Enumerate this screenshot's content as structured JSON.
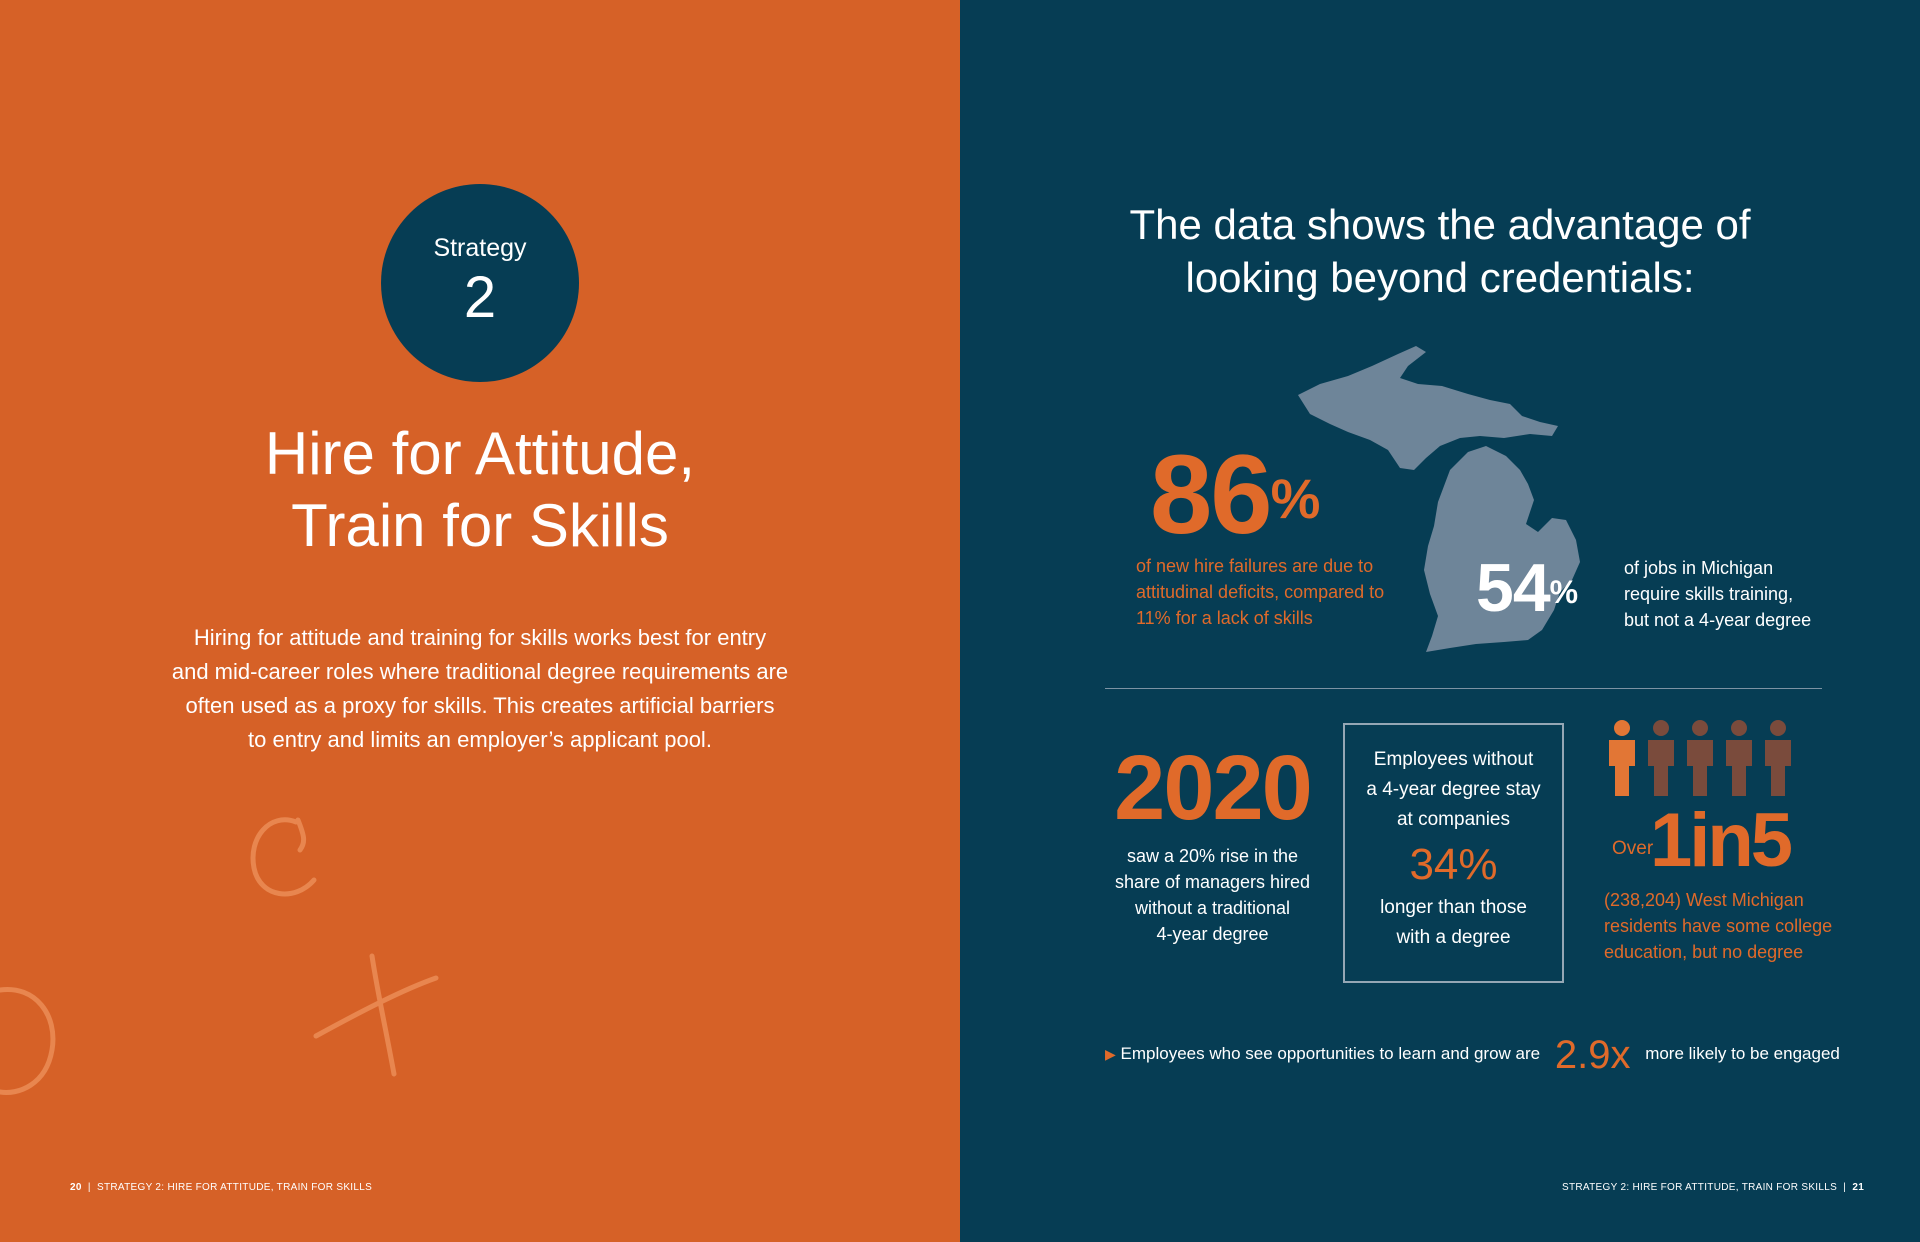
{
  "left_page": {
    "strategy_label": "Strategy",
    "strategy_number": "2",
    "title_line1": "Hire for Attitude,",
    "title_line2": "Train for Skills",
    "body_lines": [
      "Hiring for attitude and training for skills works best for entry",
      "and mid-career roles where traditional degree requirements are",
      "often used as a proxy for skills. This creates artificial barriers",
      "to entry and limits an employer’s applicant pool."
    ],
    "footer_page": "20",
    "footer_sep": "|",
    "footer_section": "STRATEGY 2: HIRE FOR ATTITUDE, TRAIN FOR SKILLS"
  },
  "right_page": {
    "heading_line1": "The data shows the advantage of",
    "heading_line2": "looking beyond credentials:",
    "stat_86": {
      "value": "86",
      "unit": "%",
      "lines": [
        "of new hire failures are due to",
        "attitudinal deficits, compared to",
        "11% for a lack of skills"
      ]
    },
    "stat_54": {
      "value": "54",
      "unit": "%",
      "lines": [
        "of jobs in Michigan",
        "require skills training,",
        "but not a 4-year degree"
      ]
    },
    "stat_2020": {
      "value": "2020",
      "lines": [
        "saw a 20% rise in the",
        "share of managers hired",
        "without a traditional",
        "4-year degree"
      ]
    },
    "stat_34": {
      "lines_top": [
        "Employees without",
        "a 4-year degree stay",
        "at companies"
      ],
      "value": "34%",
      "lines_bottom": [
        "longer than those",
        "with a degree"
      ]
    },
    "stat_1in5": {
      "prefix": "Over",
      "value": "1in5",
      "lines": [
        "(238,204) West Michigan",
        "residents have some college",
        "education, but no degree"
      ],
      "highlighted_people": 1,
      "total_people": 5
    },
    "engaged": {
      "lead": "Employees who see opportunities to learn and grow are",
      "value": "2.9x",
      "tail": "more likely to be engaged"
    },
    "footer_section": "STRATEGY 2: HIRE FOR ATTITUDE, TRAIN FOR SKILLS",
    "footer_sep": "|",
    "footer_page": "21"
  },
  "colors": {
    "orange_page": "#D66127",
    "navy_page": "#063D54",
    "accent_orange": "#E06A2A",
    "map_gray": "#6E8599",
    "person_highlight": "#E27635",
    "person_muted": "#7A4B3C"
  }
}
